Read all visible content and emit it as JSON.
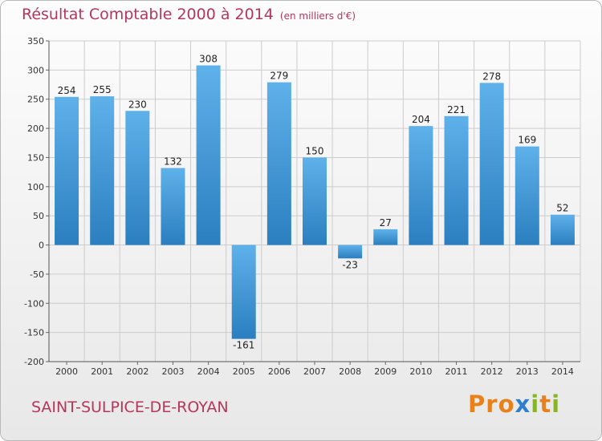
{
  "title": "Résultat Comptable 2000 à 2014",
  "subtitle": "(en milliers d'€)",
  "commune": "SAINT-SULPICE-DE-ROYAN",
  "logo": {
    "letters": [
      "P",
      "r",
      "o",
      "x",
      "i",
      "t",
      "i"
    ]
  },
  "colors": {
    "title": "#b5365d",
    "bar_top": "#5fb1ea",
    "bar_bottom": "#2b7fbf",
    "grid": "#cccccc",
    "logo": [
      "#e8811b",
      "#e8811b",
      "#e8811b",
      "#2f7fcf",
      "#86b52a",
      "#e8811b",
      "#86b52a"
    ]
  },
  "chart_data": {
    "type": "bar",
    "title": "Résultat Comptable 2000 à 2014",
    "subtitle": "(en milliers d'€)",
    "categories": [
      "2000",
      "2001",
      "2002",
      "2003",
      "2004",
      "2005",
      "2006",
      "2007",
      "2008",
      "2009",
      "2010",
      "2011",
      "2012",
      "2013",
      "2014"
    ],
    "values": [
      254,
      255,
      230,
      132,
      308,
      -161,
      279,
      150,
      -23,
      27,
      204,
      221,
      278,
      169,
      52
    ],
    "value_labels": [
      "254",
      "255",
      "230",
      "132",
      "308",
      "-161",
      "279",
      "150",
      "-23",
      "27",
      "204",
      "221",
      "278",
      "169",
      "52"
    ],
    "yticks": [
      350,
      300,
      250,
      200,
      150,
      100,
      50,
      0,
      -50,
      -100,
      -150,
      -200
    ],
    "ytick_labels": [
      "350",
      "300",
      "250",
      "200",
      "150",
      "100",
      "50",
      "0",
      "-50",
      "-100",
      "-150",
      "-200"
    ],
    "ylim": [
      -200,
      350
    ],
    "xlabel": "",
    "ylabel": "",
    "grid": true
  }
}
